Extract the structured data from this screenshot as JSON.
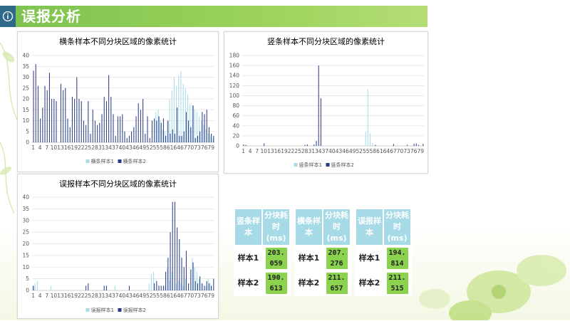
{
  "header": {
    "title": "误报分析"
  },
  "chart_data": [
    {
      "type": "bar",
      "title": "横条样本不同分块区域的像素统计",
      "ylim": [
        0,
        40
      ],
      "yticks": [
        0,
        5,
        10,
        15,
        20,
        25,
        30,
        35,
        40
      ],
      "xtick_labels": [
        "1",
        "4",
        "7",
        "10",
        "13",
        "16",
        "19",
        "22",
        "25",
        "28",
        "31",
        "34",
        "37",
        "40",
        "43",
        "46",
        "49",
        "52",
        "55",
        "58",
        "61",
        "64",
        "67",
        "70",
        "73",
        "76",
        "79"
      ],
      "series": [
        {
          "name": "横条样本1",
          "color": "#a9dbe8",
          "values": [
            0,
            0,
            0,
            0,
            0,
            0,
            0,
            0,
            0,
            0,
            0,
            0,
            0,
            0,
            0,
            0,
            0,
            0,
            0,
            0,
            0,
            0,
            0,
            0,
            0,
            0,
            0,
            0,
            0,
            0,
            0,
            0,
            0,
            0,
            0,
            0,
            0,
            0,
            0,
            0,
            0,
            0,
            0,
            0,
            0,
            0,
            0,
            0,
            0,
            0,
            0,
            0,
            0,
            0,
            14,
            15,
            10,
            6,
            5,
            10,
            20,
            24,
            30,
            26,
            31,
            33,
            27,
            25,
            22,
            18,
            17,
            15,
            14,
            12,
            10,
            8,
            6,
            4,
            3,
            2
          ]
        },
        {
          "name": "横条样本2",
          "color": "#2b3a86",
          "values": [
            33,
            36,
            26,
            11,
            16,
            26,
            24,
            32,
            20,
            20,
            19,
            0,
            27,
            24,
            25,
            11,
            7,
            21,
            20,
            30,
            20,
            19,
            10,
            8,
            19,
            4,
            15,
            10,
            8,
            9,
            13,
            21,
            19,
            31,
            21,
            13,
            3,
            12,
            12,
            13,
            5,
            2,
            3,
            5,
            7,
            12,
            18,
            15,
            20,
            4,
            12,
            2,
            10,
            11,
            10,
            12,
            9,
            11,
            3,
            10,
            4,
            6,
            4,
            16,
            3,
            3,
            5,
            14,
            10,
            7,
            17,
            2,
            3,
            5,
            14,
            13,
            15,
            7,
            4,
            3
          ]
        }
      ]
    },
    {
      "type": "bar",
      "title": "竖条样本不同分块区域的像素统计",
      "ylim": [
        0,
        180
      ],
      "yticks": [
        0,
        20,
        40,
        60,
        80,
        100,
        120,
        140,
        160,
        180
      ],
      "xtick_labels": [
        "1",
        "4",
        "7",
        "10",
        "13",
        "16",
        "19",
        "22",
        "25",
        "28",
        "31",
        "34",
        "37",
        "40",
        "43",
        "46",
        "49",
        "52",
        "55",
        "58",
        "61",
        "64",
        "67",
        "70",
        "73",
        "76",
        "79"
      ],
      "series": [
        {
          "name": "竖条样本1",
          "color": "#a9dbe8",
          "values": [
            0,
            0,
            0,
            0,
            0,
            0,
            0,
            0,
            0,
            0,
            0,
            0,
            0,
            0,
            0,
            0,
            0,
            0,
            0,
            0,
            0,
            0,
            0,
            0,
            0,
            0,
            0,
            0,
            0,
            0,
            0,
            0,
            0,
            0,
            0,
            0,
            0,
            0,
            0,
            0,
            0,
            0,
            0,
            0,
            0,
            0,
            0,
            0,
            0,
            0,
            0,
            0,
            0,
            0,
            28,
            113,
            25,
            5,
            0,
            0,
            0,
            0,
            0,
            0,
            0,
            0,
            0,
            0,
            0,
            0,
            0,
            0,
            0,
            0,
            0,
            0,
            0,
            0,
            0,
            0
          ]
        },
        {
          "name": "竖条样本2",
          "color": "#2b3a86",
          "values": [
            3,
            2,
            0,
            0,
            0,
            0,
            0,
            0,
            0,
            5,
            0,
            0,
            0,
            0,
            0,
            0,
            0,
            0,
            0,
            0,
            0,
            0,
            0,
            0,
            0,
            0,
            0,
            2,
            3,
            0,
            0,
            3,
            10,
            160,
            95,
            0,
            0,
            0,
            0,
            0,
            0,
            0,
            0,
            0,
            0,
            0,
            0,
            0,
            0,
            0,
            0,
            0,
            0,
            0,
            0,
            0,
            0,
            0,
            2,
            0,
            0,
            0,
            0,
            0,
            0,
            0,
            4,
            0,
            0,
            0,
            0,
            0,
            2,
            0,
            0,
            4,
            5,
            2,
            0,
            4
          ]
        }
      ]
    },
    {
      "type": "bar",
      "title": "误报样本不同分块区域的像素统计",
      "ylim": [
        0,
        40
      ],
      "yticks": [
        0,
        5,
        10,
        15,
        20,
        25,
        30,
        35,
        40
      ],
      "xtick_labels": [
        "1",
        "4",
        "7",
        "10",
        "13",
        "16",
        "19",
        "22",
        "25",
        "28",
        "31",
        "34",
        "37",
        "40",
        "43",
        "46",
        "49",
        "52",
        "55",
        "58",
        "61",
        "64",
        "67",
        "70",
        "73",
        "76",
        "79"
      ],
      "series": [
        {
          "name": "误报样本1",
          "color": "#a9dbe8",
          "values": [
            2,
            3,
            4,
            0,
            0,
            0,
            0,
            0,
            2,
            0,
            0,
            0,
            0,
            0,
            0,
            0,
            0,
            0,
            0,
            0,
            0,
            0,
            0,
            0,
            0,
            0,
            0,
            0,
            0,
            0,
            0,
            0,
            0,
            0,
            0,
            0,
            2,
            0,
            0,
            0,
            0,
            0,
            0,
            0,
            0,
            0,
            0,
            0,
            0,
            0,
            0,
            3,
            7,
            8,
            0,
            0,
            0,
            0,
            2,
            10,
            4,
            8,
            0,
            3,
            4,
            3,
            2,
            5,
            0,
            0,
            14,
            10,
            8,
            5,
            3,
            0,
            2,
            5,
            3,
            0
          ]
        },
        {
          "name": "误报样本2",
          "color": "#2b3a86",
          "values": [
            2,
            0,
            0,
            0,
            0,
            0,
            0,
            0,
            0,
            0,
            0,
            0,
            0,
            0,
            0,
            0,
            0,
            0,
            0,
            0,
            0,
            0,
            0,
            2,
            3,
            0,
            0,
            0,
            0,
            0,
            0,
            2,
            2,
            0,
            0,
            0,
            0,
            0,
            0,
            0,
            0,
            0,
            2,
            0,
            0,
            0,
            0,
            0,
            0,
            0,
            0,
            0,
            0,
            3,
            4,
            2,
            2,
            2,
            8,
            14,
            25,
            38,
            38,
            27,
            22,
            14,
            10,
            17,
            3,
            9,
            12,
            4,
            3,
            6,
            3,
            2,
            4,
            3,
            2,
            5
          ]
        }
      ]
    }
  ],
  "tables": [
    {
      "head": [
        "竖条样本",
        "分块耗时(ms)"
      ],
      "rows": [
        [
          "样本1",
          "203.059"
        ],
        [
          "样本2",
          "190.613"
        ]
      ]
    },
    {
      "head": [
        "横条样本",
        "分块耗时(ms)"
      ],
      "rows": [
        [
          "样本1",
          "207.276"
        ],
        [
          "样本2",
          "211.657"
        ]
      ]
    },
    {
      "head": [
        "误报样本",
        "分块耗时(ms)"
      ],
      "rows": [
        [
          "样本1",
          "194.814"
        ],
        [
          "样本2",
          "211.515"
        ]
      ]
    }
  ]
}
